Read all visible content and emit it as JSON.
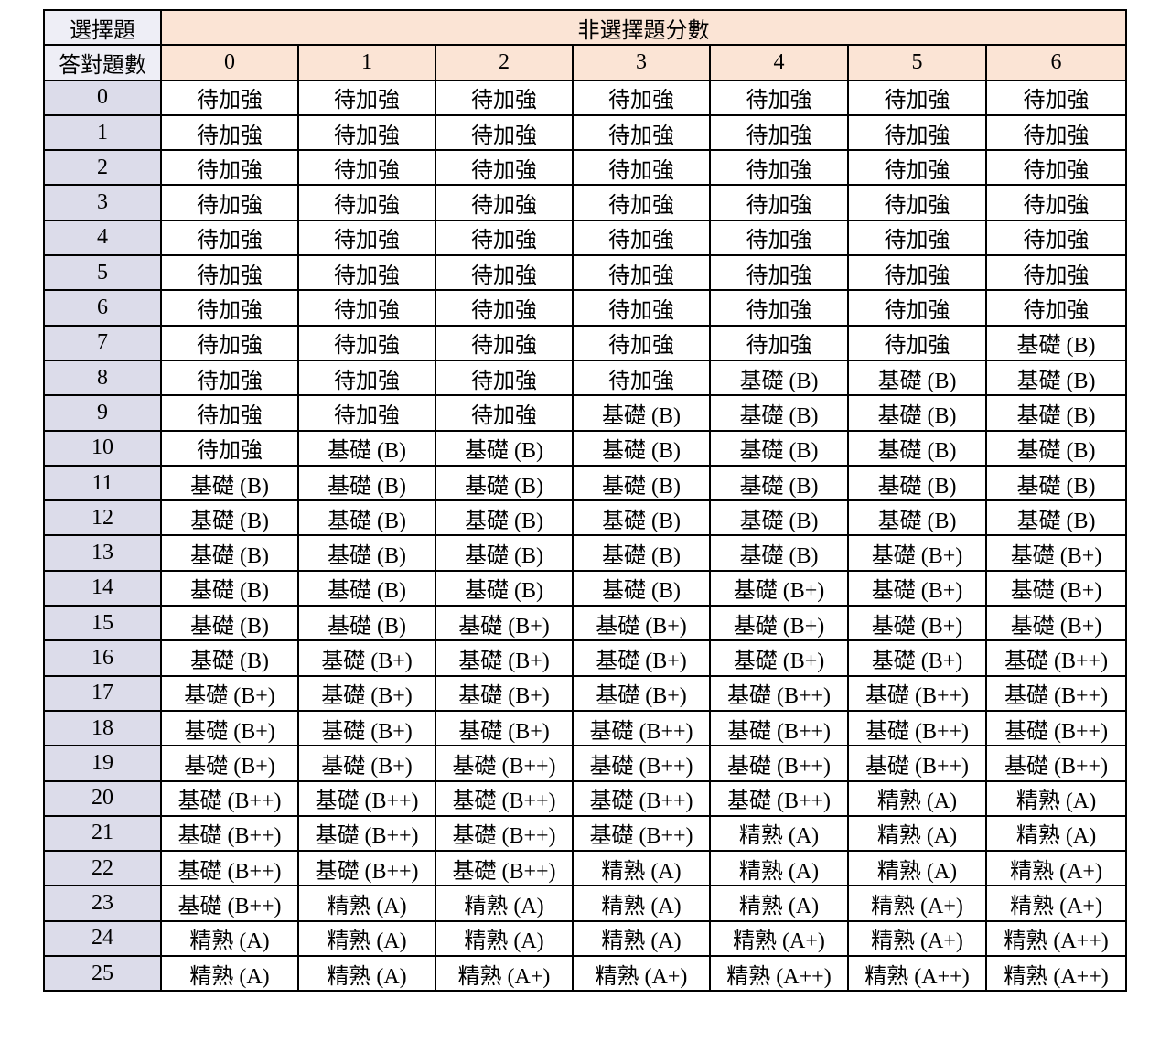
{
  "table": {
    "corner_top": "選擇題",
    "corner_bottom": "答對題數",
    "group_header": "非選擇題分數",
    "columns": [
      "0",
      "1",
      "2",
      "3",
      "4",
      "5",
      "6"
    ],
    "rows": [
      [
        "0",
        "待加強",
        "待加強",
        "待加強",
        "待加強",
        "待加強",
        "待加強",
        "待加強"
      ],
      [
        "1",
        "待加強",
        "待加強",
        "待加強",
        "待加強",
        "待加強",
        "待加強",
        "待加強"
      ],
      [
        "2",
        "待加強",
        "待加強",
        "待加強",
        "待加強",
        "待加強",
        "待加強",
        "待加強"
      ],
      [
        "3",
        "待加強",
        "待加強",
        "待加強",
        "待加強",
        "待加強",
        "待加強",
        "待加強"
      ],
      [
        "4",
        "待加強",
        "待加強",
        "待加強",
        "待加強",
        "待加強",
        "待加強",
        "待加強"
      ],
      [
        "5",
        "待加強",
        "待加強",
        "待加強",
        "待加強",
        "待加強",
        "待加強",
        "待加強"
      ],
      [
        "6",
        "待加強",
        "待加強",
        "待加強",
        "待加強",
        "待加強",
        "待加強",
        "待加強"
      ],
      [
        "7",
        "待加強",
        "待加強",
        "待加強",
        "待加強",
        "待加強",
        "待加強",
        "基礎 (B)"
      ],
      [
        "8",
        "待加強",
        "待加強",
        "待加強",
        "待加強",
        "基礎 (B)",
        "基礎 (B)",
        "基礎 (B)"
      ],
      [
        "9",
        "待加強",
        "待加強",
        "待加強",
        "基礎 (B)",
        "基礎 (B)",
        "基礎 (B)",
        "基礎 (B)"
      ],
      [
        "10",
        "待加強",
        "基礎 (B)",
        "基礎 (B)",
        "基礎 (B)",
        "基礎 (B)",
        "基礎 (B)",
        "基礎 (B)"
      ],
      [
        "11",
        "基礎 (B)",
        "基礎 (B)",
        "基礎 (B)",
        "基礎 (B)",
        "基礎 (B)",
        "基礎 (B)",
        "基礎 (B)"
      ],
      [
        "12",
        "基礎 (B)",
        "基礎 (B)",
        "基礎 (B)",
        "基礎 (B)",
        "基礎 (B)",
        "基礎 (B)",
        "基礎 (B)"
      ],
      [
        "13",
        "基礎 (B)",
        "基礎 (B)",
        "基礎 (B)",
        "基礎 (B)",
        "基礎 (B)",
        "基礎 (B+)",
        "基礎 (B+)"
      ],
      [
        "14",
        "基礎 (B)",
        "基礎 (B)",
        "基礎 (B)",
        "基礎 (B)",
        "基礎 (B+)",
        "基礎 (B+)",
        "基礎 (B+)"
      ],
      [
        "15",
        "基礎 (B)",
        "基礎 (B)",
        "基礎 (B+)",
        "基礎 (B+)",
        "基礎 (B+)",
        "基礎 (B+)",
        "基礎 (B+)"
      ],
      [
        "16",
        "基礎 (B)",
        "基礎 (B+)",
        "基礎 (B+)",
        "基礎 (B+)",
        "基礎 (B+)",
        "基礎 (B+)",
        "基礎 (B++)"
      ],
      [
        "17",
        "基礎 (B+)",
        "基礎 (B+)",
        "基礎 (B+)",
        "基礎 (B+)",
        "基礎 (B++)",
        "基礎 (B++)",
        "基礎 (B++)"
      ],
      [
        "18",
        "基礎 (B+)",
        "基礎 (B+)",
        "基礎 (B+)",
        "基礎 (B++)",
        "基礎 (B++)",
        "基礎 (B++)",
        "基礎 (B++)"
      ],
      [
        "19",
        "基礎 (B+)",
        "基礎 (B+)",
        "基礎 (B++)",
        "基礎 (B++)",
        "基礎 (B++)",
        "基礎 (B++)",
        "基礎 (B++)"
      ],
      [
        "20",
        "基礎 (B++)",
        "基礎 (B++)",
        "基礎 (B++)",
        "基礎 (B++)",
        "基礎 (B++)",
        "精熟 (A)",
        "精熟 (A)"
      ],
      [
        "21",
        "基礎 (B++)",
        "基礎 (B++)",
        "基礎 (B++)",
        "基礎 (B++)",
        "精熟 (A)",
        "精熟 (A)",
        "精熟 (A)"
      ],
      [
        "22",
        "基礎 (B++)",
        "基礎 (B++)",
        "基礎 (B++)",
        "精熟 (A)",
        "精熟 (A)",
        "精熟 (A)",
        "精熟 (A+)"
      ],
      [
        "23",
        "基礎 (B++)",
        "精熟 (A)",
        "精熟 (A)",
        "精熟 (A)",
        "精熟 (A)",
        "精熟 (A+)",
        "精熟 (A+)"
      ],
      [
        "24",
        "精熟 (A)",
        "精熟 (A)",
        "精熟 (A)",
        "精熟 (A)",
        "精熟 (A+)",
        "精熟 (A+)",
        "精熟 (A++)"
      ],
      [
        "25",
        "精熟 (A)",
        "精熟 (A)",
        "精熟 (A+)",
        "精熟 (A+)",
        "精熟 (A++)",
        "精熟 (A++)",
        "精熟 (A++)"
      ]
    ]
  }
}
